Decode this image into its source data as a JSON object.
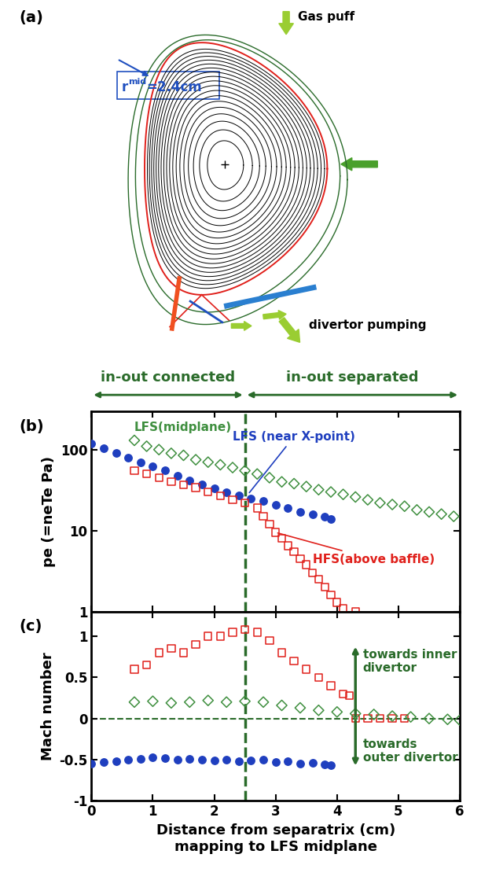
{
  "panel_a": {
    "label": "(a)",
    "gas_puff": "Gas puff",
    "divertor_pumping": "divertor pumping",
    "r_mid": {
      "base": "r",
      "superscript": "mid",
      "rest": "=2.4cm"
    }
  },
  "regions": [
    {
      "text": "in-out connected",
      "range": [
        0,
        2.5
      ]
    },
    {
      "text": "in-out separated",
      "range": [
        2.5,
        6
      ]
    }
  ],
  "separation_x": 2.5,
  "xlabel": "Distance from separatrix (cm)\nmapping to LFS midplane",
  "chart_data": [
    {
      "type": "scatter",
      "label": "(b)",
      "ylabel": "pe (=neTe Pa)",
      "log": "y",
      "xlim": [
        0,
        6
      ],
      "xticks": [
        0,
        1,
        2,
        3,
        4,
        5,
        6
      ],
      "ylim": [
        1,
        300
      ],
      "yticks": [
        1,
        10,
        100
      ],
      "tick_labels": "y",
      "series": [
        {
          "name": "LFS(midplane)",
          "color": "#3f8f3f",
          "marker": "open_diamond",
          "x": [
            0.7,
            0.9,
            1.1,
            1.3,
            1.5,
            1.7,
            1.9,
            2.1,
            2.3,
            2.5,
            2.7,
            2.9,
            3.1,
            3.3,
            3.5,
            3.7,
            3.9,
            4.1,
            4.3,
            4.5,
            4.7,
            4.9,
            5.1,
            5.3,
            5.5,
            5.7,
            5.9
          ],
          "values": [
            130,
            110,
            100,
            90,
            85,
            75,
            70,
            65,
            60,
            55,
            50,
            45,
            40,
            38,
            35,
            32,
            30,
            28,
            26,
            24,
            22,
            21,
            20,
            18,
            17,
            16,
            15
          ]
        },
        {
          "name": "LFS (near X-point)",
          "color": "#1f3fbf",
          "marker": "circle",
          "x": [
            0,
            0.2,
            0.4,
            0.6,
            0.8,
            1.0,
            1.2,
            1.4,
            1.6,
            1.8,
            2.0,
            2.2,
            2.4,
            2.6,
            2.8,
            3.0,
            3.2,
            3.4,
            3.6,
            3.8,
            3.9
          ],
          "values": [
            120,
            105,
            90,
            80,
            70,
            62,
            55,
            48,
            42,
            37,
            33,
            30,
            27,
            25,
            23,
            21,
            19,
            17,
            16,
            15,
            14
          ]
        },
        {
          "name": "HFS(above baffle)",
          "color": "#e0201b",
          "marker": "open_square",
          "x": [
            0.7,
            0.9,
            1.1,
            1.3,
            1.5,
            1.7,
            1.9,
            2.1,
            2.3,
            2.5,
            2.7,
            2.8,
            2.9,
            3.0,
            3.1,
            3.2,
            3.3,
            3.4,
            3.5,
            3.6,
            3.7,
            3.8,
            3.9,
            4.0,
            4.1,
            4.3
          ],
          "values": [
            55,
            50,
            45,
            40,
            37,
            34,
            30,
            27,
            24,
            22,
            19,
            15,
            12,
            9.5,
            8,
            6.5,
            5.5,
            4.5,
            3.8,
            3.0,
            2.5,
            2.0,
            1.6,
            1.3,
            1.1,
            1.0
          ]
        }
      ]
    },
    {
      "type": "scatter",
      "label": "(c)",
      "ylabel": "Mach number",
      "hline": 0,
      "xlim": [
        0,
        6
      ],
      "xticks": [
        0,
        1,
        2,
        3,
        4,
        5,
        6
      ],
      "ylim": [
        -1,
        1.3
      ],
      "yticks": [
        -1,
        -0.5,
        0,
        0.5,
        1
      ],
      "arrows": {
        "x": 4.3,
        "up": {
          "text": "towards inner\ndivertor",
          "to": 0.9
        },
        "down": {
          "text": "towards\nouter divertor",
          "to": -0.6
        }
      },
      "series": [
        {
          "color": "#e0201b",
          "marker": "open_square",
          "x": [
            0.7,
            0.9,
            1.1,
            1.3,
            1.5,
            1.7,
            1.9,
            2.1,
            2.3,
            2.5,
            2.7,
            2.9,
            3.1,
            3.3,
            3.5,
            3.7,
            3.9,
            4.1,
            4.2,
            4.3,
            4.5,
            4.7,
            4.9,
            5.1
          ],
          "values": [
            0.6,
            0.65,
            0.8,
            0.85,
            0.8,
            0.9,
            1.0,
            1.0,
            1.05,
            1.08,
            1.05,
            0.95,
            0.8,
            0.7,
            0.6,
            0.5,
            0.4,
            0.3,
            0.28,
            0,
            0,
            0,
            0,
            0
          ]
        },
        {
          "color": "#3f8f3f",
          "marker": "open_diamond",
          "x": [
            0.7,
            1.0,
            1.3,
            1.6,
            1.9,
            2.2,
            2.5,
            2.8,
            3.1,
            3.4,
            3.7,
            4.0,
            4.3,
            4.6,
            4.9,
            5.2,
            5.5,
            5.8,
            6.0
          ],
          "values": [
            0.2,
            0.21,
            0.19,
            0.2,
            0.22,
            0.2,
            0.21,
            0.2,
            0.16,
            0.13,
            0.1,
            0.08,
            0.06,
            0.05,
            0.03,
            0.02,
            0.0,
            -0.01,
            -0.02
          ]
        },
        {
          "color": "#1f3fbf",
          "marker": "circle",
          "x": [
            0,
            0.2,
            0.4,
            0.6,
            0.8,
            1.0,
            1.2,
            1.4,
            1.6,
            1.8,
            2.0,
            2.2,
            2.4,
            2.6,
            2.8,
            3.0,
            3.2,
            3.4,
            3.6,
            3.8,
            3.9
          ],
          "values": [
            -0.55,
            -0.53,
            -0.52,
            -0.5,
            -0.49,
            -0.47,
            -0.48,
            -0.5,
            -0.49,
            -0.5,
            -0.51,
            -0.5,
            -0.52,
            -0.51,
            -0.5,
            -0.53,
            -0.52,
            -0.55,
            -0.54,
            -0.56,
            -0.57
          ]
        }
      ]
    }
  ]
}
